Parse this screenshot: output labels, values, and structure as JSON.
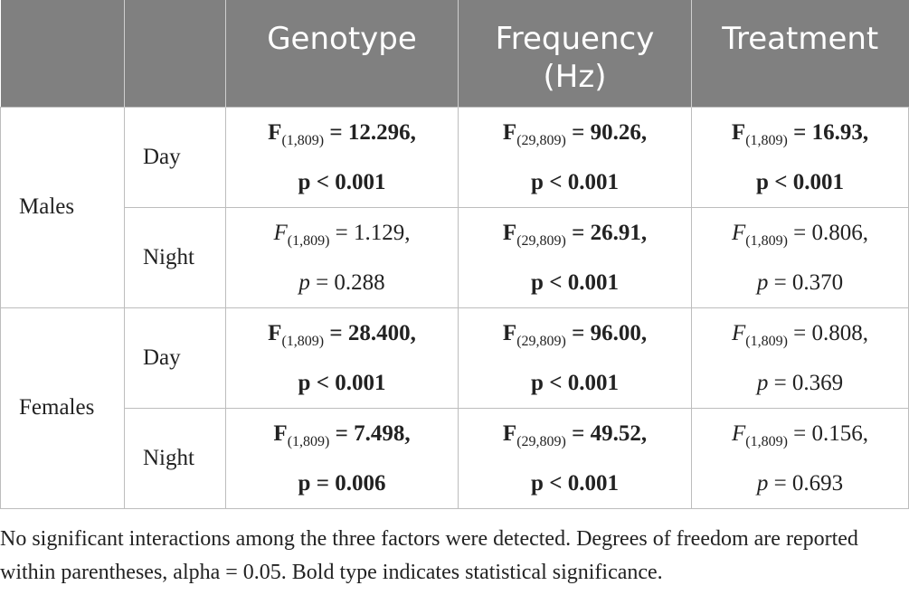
{
  "headers": [
    "",
    "",
    "Genotype",
    "Frequency (Hz)",
    "Treatment"
  ],
  "groups": [
    {
      "name": "Males",
      "rows": [
        {
          "period": "Day",
          "cells": [
            {
              "letter": "F",
              "df": "(1,809)",
              "value": " = 12.296,",
              "pline": "p < 0.001",
              "sig": true
            },
            {
              "letter": "F",
              "df": "(29,809)",
              "value": " = 90.26,",
              "pline": "p < 0.001",
              "sig": true
            },
            {
              "letter": "F",
              "df": "(1,809)",
              "value": " = 16.93,",
              "pline": "p < 0.001",
              "sig": true
            }
          ]
        },
        {
          "period": "Night",
          "cells": [
            {
              "letter": "F",
              "df": "(1,809)",
              "value": " = 1.129,",
              "pline": "p = 0.288",
              "sig": false
            },
            {
              "letter": "F",
              "df": "(29,809)",
              "value": " = 26.91,",
              "pline": "p < 0.001",
              "sig": true
            },
            {
              "letter": "F",
              "df": "(1,809)",
              "value": " = 0.806,",
              "pline": "p = 0.370",
              "sig": false
            }
          ]
        }
      ]
    },
    {
      "name": "Females",
      "rows": [
        {
          "period": "Day",
          "cells": [
            {
              "letter": "F",
              "df": "(1,809)",
              "value": " = 28.400,",
              "pline": "p < 0.001",
              "sig": true
            },
            {
              "letter": "F",
              "df": "(29,809)",
              "value": " = 96.00,",
              "pline": "p < 0.001",
              "sig": true
            },
            {
              "letter": "F",
              "df": "(1,809)",
              "value": " = 0.808,",
              "pline": "p = 0.369",
              "sig": false
            }
          ]
        },
        {
          "period": "Night",
          "cells": [
            {
              "letter": "F",
              "df": "(1,809)",
              "value": " = 7.498,",
              "pline": "p = 0.006",
              "sig": true
            },
            {
              "letter": "F",
              "df": "(29,809)",
              "value": " = 49.52,",
              "pline": "p < 0.001",
              "sig": true
            },
            {
              "letter": "F",
              "df": "(1,809)",
              "value": " = 0.156,",
              "pline": "p = 0.693",
              "sig": false
            }
          ]
        }
      ]
    }
  ],
  "footnote": "No significant interactions among the three factors were detected. Degrees of freedom are reported within parentheses, alpha = 0.05. Bold type indicates statistical significance."
}
